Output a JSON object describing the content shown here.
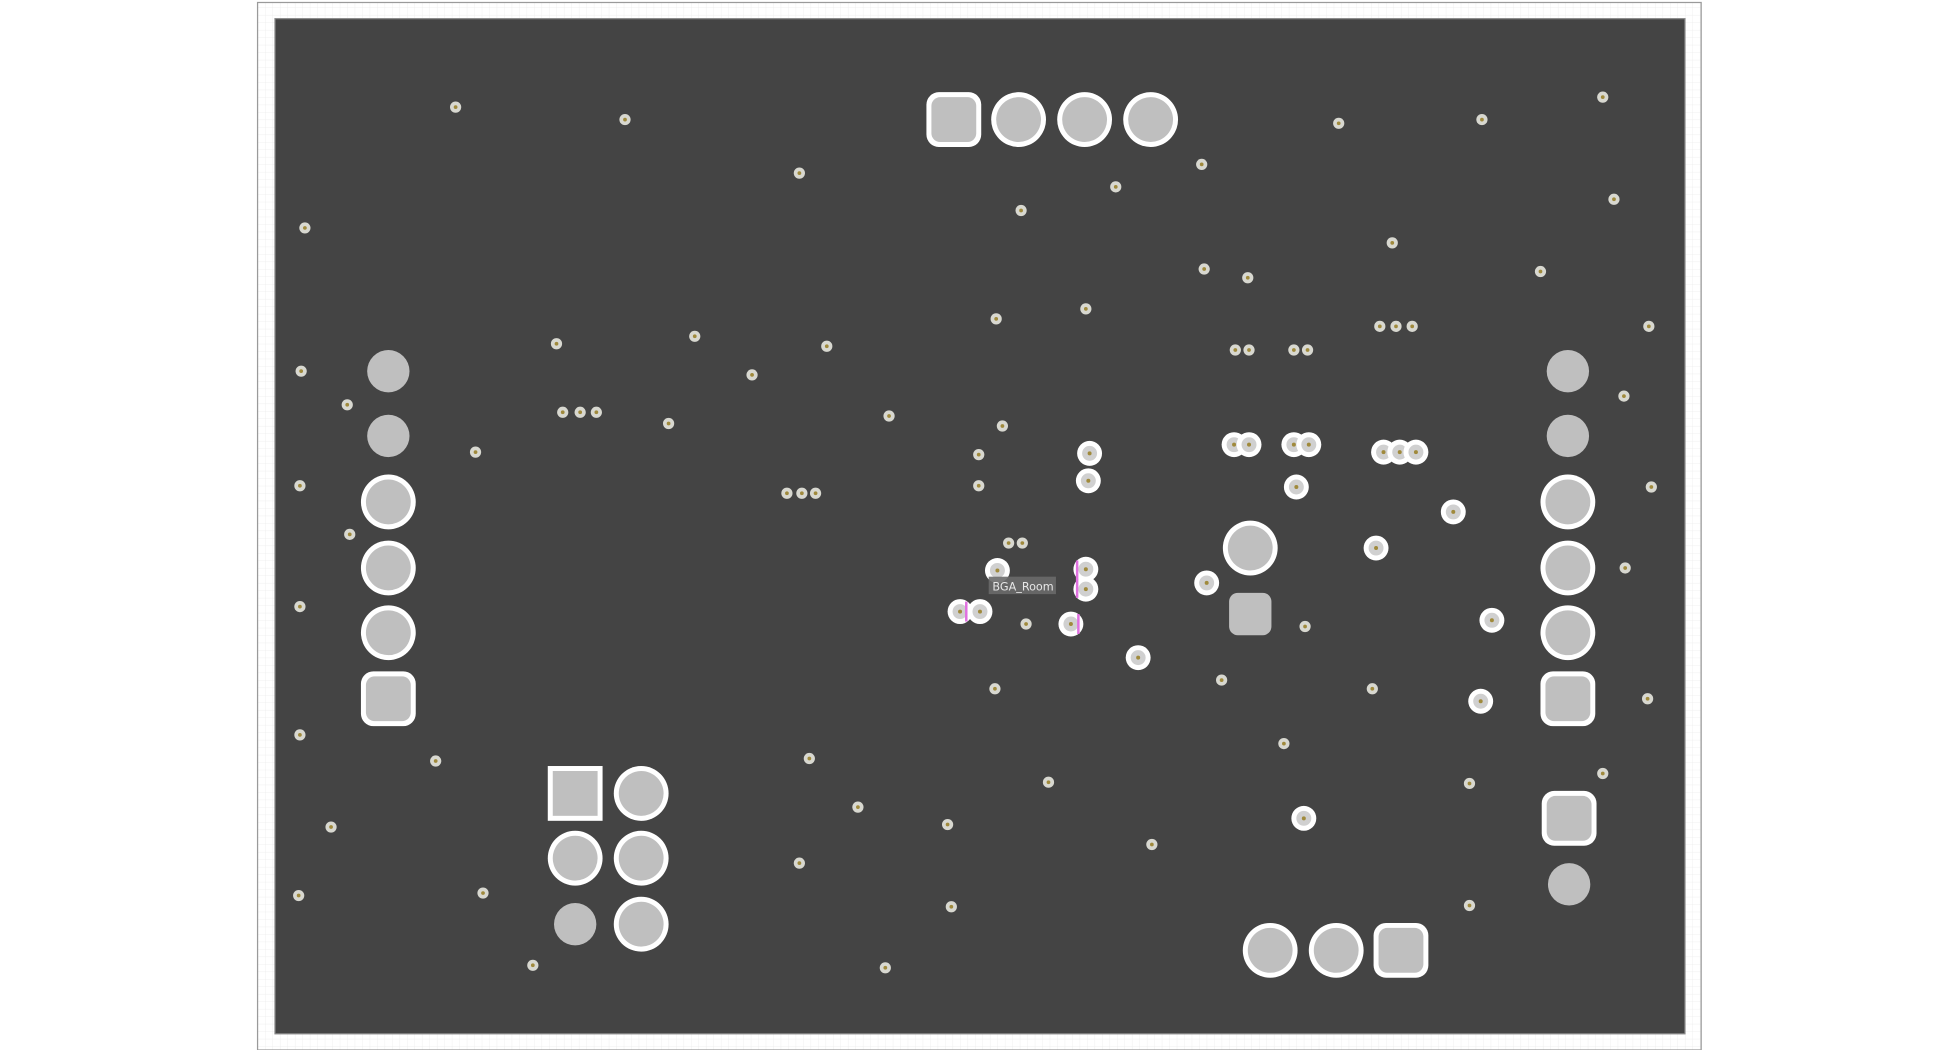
{
  "board": {
    "room_label": "BGA_Room",
    "colors": {
      "board": "#444444",
      "pad": "#bfbfbf",
      "pad_ring": "#ffffff",
      "via_center": "#a08a3c",
      "room_label_bg": "#6a6a6a",
      "drc_marker": "#e070e0",
      "frame_grid": "#e6e6e6"
    }
  }
}
